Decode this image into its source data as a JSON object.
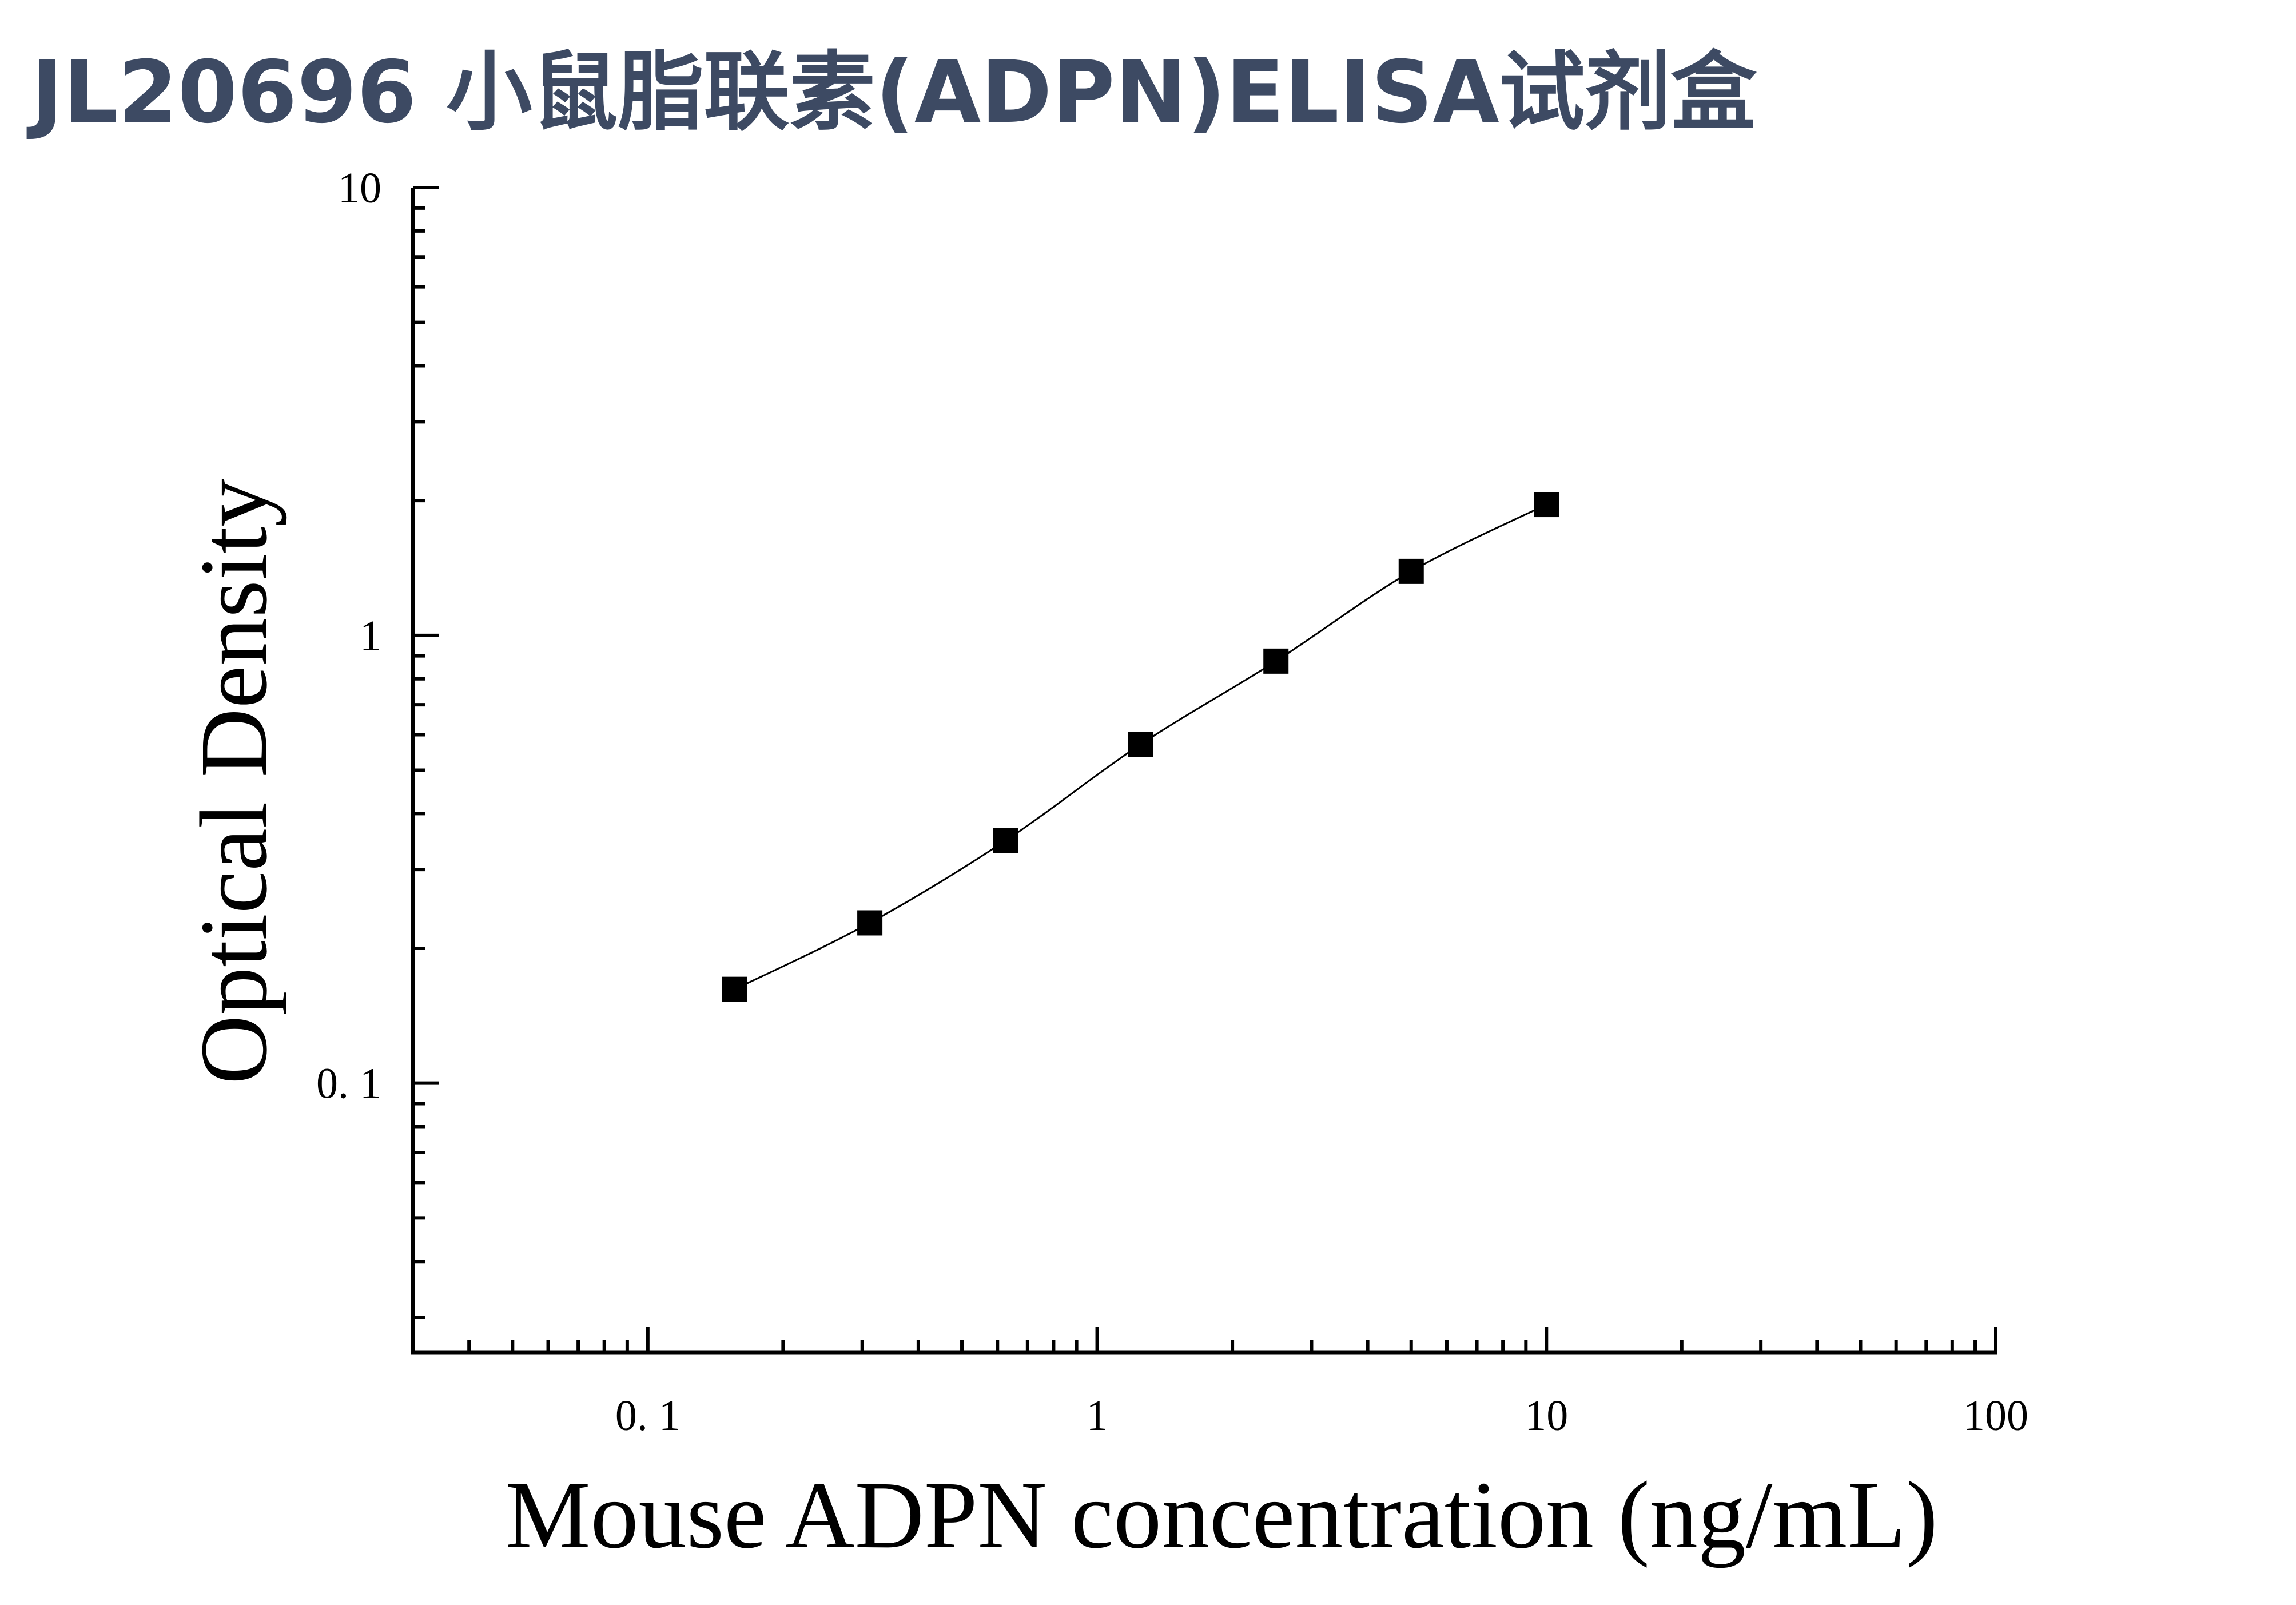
{
  "chart_data": {
    "type": "scatter",
    "title": "JL20696 小鼠脂联素(ADPN)ELISA试剂盒",
    "xlabel": "Mouse ADPN concentration (ng/mL)",
    "ylabel": "Optical Density",
    "xscale": "log",
    "yscale": "log",
    "xlim": [
      0.03,
      100
    ],
    "ylim": [
      0.025,
      10
    ],
    "x_ticks": [
      {
        "value": 0.1,
        "label": "0. 1"
      },
      {
        "value": 1,
        "label": "1"
      },
      {
        "value": 10,
        "label": "10"
      },
      {
        "value": 100,
        "label": "100"
      }
    ],
    "y_ticks": [
      {
        "value": 0.1,
        "label": "0. 1"
      },
      {
        "value": 1,
        "label": "1"
      },
      {
        "value": 10,
        "label": "10"
      }
    ],
    "grid": false,
    "legend": "none",
    "marker": "square",
    "fit_curve": true,
    "series": [
      {
        "x": [
          0.156,
          0.312,
          0.625,
          1.25,
          2.5,
          5,
          10
        ],
        "y": [
          0.162,
          0.228,
          0.348,
          0.571,
          0.876,
          1.39,
          1.96
        ]
      }
    ],
    "colors": {
      "marks": "#000000",
      "title": "#3d4a63"
    }
  }
}
